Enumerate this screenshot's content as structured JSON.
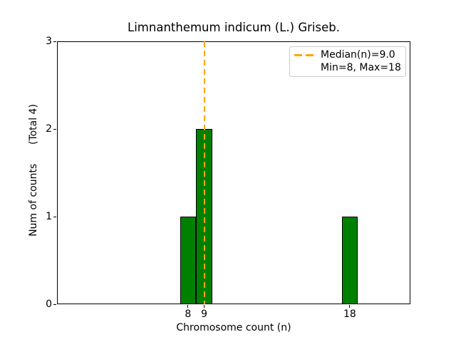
{
  "chart_data": {
    "type": "bar",
    "title": "Limnanthemum indicum (L.) Griseb.",
    "xlabel": "Chromosome count (n)",
    "ylabel": "Num of counts      (Total 4)",
    "x": [
      8,
      9,
      18
    ],
    "values": [
      1,
      2,
      1
    ],
    "bar_width": 1,
    "total_counts": 4,
    "xticks": [
      8,
      9,
      18
    ],
    "yticks": [
      0,
      1,
      2,
      3
    ],
    "xlim": [
      -0.1,
      21.75
    ],
    "ylim": [
      0,
      3
    ],
    "grid": false,
    "legend_position": "upper right",
    "median_line": {
      "x": 9.0,
      "style": "dashed",
      "label": "Median(n)=9.0"
    },
    "legend": [
      "Median(n)=9.0",
      "Min=8, Max=18"
    ],
    "colors": {
      "bar_fill": "#008000",
      "bar_edge": "#000000",
      "median_line": "#FFA500",
      "axes": "#000000",
      "background": "#FFFFFF",
      "legend_border": "#CCCCCC"
    }
  }
}
